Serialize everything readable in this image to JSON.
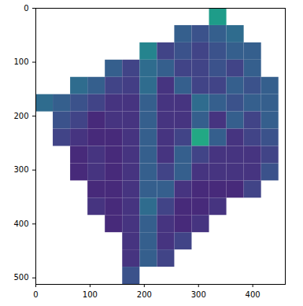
{
  "chart_data": {
    "type": "heatmap",
    "xlim": [
      0,
      460
    ],
    "ylim": [
      512,
      0
    ],
    "xticks": [
      0,
      100,
      200,
      300,
      400
    ],
    "yticks": [
      0,
      100,
      200,
      300,
      400,
      500
    ],
    "x_edges": [
      0,
      32,
      64,
      96,
      128,
      160,
      192,
      224,
      256,
      288,
      320,
      352,
      384,
      416,
      448,
      480
    ],
    "y_edges": [
      0,
      32,
      64,
      96,
      128,
      160,
      192,
      224,
      256,
      288,
      320,
      352,
      384,
      416,
      448,
      480,
      512
    ],
    "color": "viridis",
    "color_range": [
      0,
      1
    ],
    "cells": [
      [
        null,
        null,
        null,
        null,
        null,
        null,
        null,
        null,
        null,
        null,
        0.55,
        null,
        null,
        null,
        null
      ],
      [
        null,
        null,
        null,
        null,
        null,
        null,
        null,
        null,
        0.3,
        0.25,
        0.3,
        0.35,
        null,
        null,
        null
      ],
      [
        null,
        null,
        null,
        null,
        null,
        null,
        0.45,
        0.2,
        0.25,
        0.2,
        0.25,
        0.3,
        0.3,
        null,
        null
      ],
      [
        null,
        null,
        null,
        null,
        0.3,
        0.2,
        0.35,
        0.3,
        0.2,
        0.2,
        0.25,
        0.2,
        0.3,
        null,
        null
      ],
      [
        null,
        null,
        0.35,
        0.3,
        0.2,
        0.18,
        0.35,
        0.15,
        0.3,
        0.2,
        0.2,
        0.3,
        0.25,
        0.3,
        null
      ],
      [
        0.35,
        0.3,
        0.25,
        0.2,
        0.15,
        0.15,
        0.3,
        0.15,
        0.15,
        0.35,
        0.3,
        0.25,
        0.3,
        0.3,
        null
      ],
      [
        null,
        0.25,
        0.2,
        0.12,
        0.15,
        0.15,
        0.3,
        0.15,
        0.15,
        0.3,
        0.15,
        0.3,
        0.2,
        0.3,
        null
      ],
      [
        null,
        0.2,
        0.15,
        0.12,
        0.12,
        0.15,
        0.3,
        0.15,
        0.2,
        0.6,
        0.3,
        0.15,
        0.2,
        0.25,
        null
      ],
      [
        null,
        null,
        0.12,
        0.15,
        0.12,
        0.15,
        0.3,
        0.15,
        0.3,
        0.2,
        0.15,
        0.15,
        0.15,
        0.2,
        null
      ],
      [
        null,
        null,
        0.12,
        0.15,
        0.12,
        0.15,
        0.3,
        0.2,
        0.3,
        0.15,
        0.15,
        0.15,
        0.15,
        0.25,
        null
      ],
      [
        null,
        null,
        null,
        0.12,
        0.12,
        0.15,
        0.3,
        0.3,
        0.15,
        0.12,
        0.12,
        0.12,
        0.2,
        null,
        null
      ],
      [
        null,
        null,
        null,
        0.15,
        0.12,
        0.15,
        0.35,
        0.2,
        0.12,
        0.12,
        0.15,
        null,
        null,
        null,
        null
      ],
      [
        null,
        null,
        null,
        null,
        0.12,
        0.15,
        0.3,
        0.15,
        0.12,
        0.15,
        null,
        null,
        null,
        null,
        null
      ],
      [
        null,
        null,
        null,
        null,
        null,
        0.15,
        0.3,
        0.15,
        0.2,
        null,
        null,
        null,
        null,
        null,
        null
      ],
      [
        null,
        null,
        null,
        null,
        null,
        0.15,
        0.3,
        0.2,
        null,
        null,
        null,
        null,
        null,
        null,
        null
      ],
      [
        null,
        null,
        null,
        null,
        null,
        0.25,
        null,
        null,
        null,
        null,
        null,
        null,
        null,
        null,
        null
      ]
    ]
  }
}
